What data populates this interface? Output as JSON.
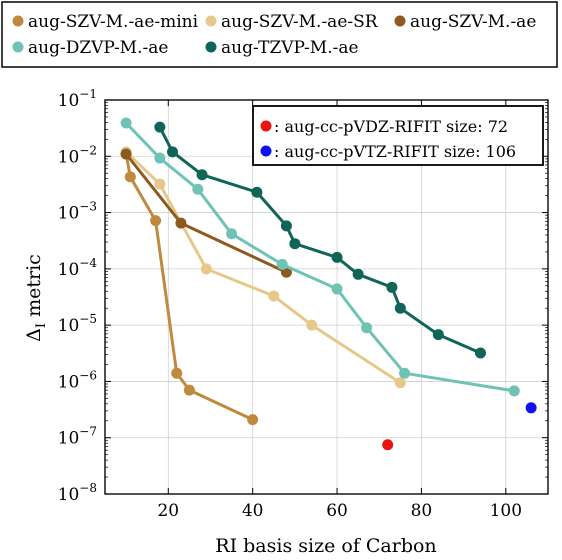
{
  "chart_data": {
    "type": "line",
    "xlabel": "RI basis size of Carbon",
    "ylabel": "Δ",
    "ylabel_sub": "I",
    "ylabel_rest": " metric",
    "yscale": "log",
    "xlim": [
      5,
      110
    ],
    "ylim": [
      1e-08,
      0.1
    ],
    "x_ticks": [
      20,
      40,
      60,
      80,
      100
    ],
    "y_ticks": [
      {
        "base": "10",
        "exp": "−1",
        "value": 0.1
      },
      {
        "base": "10",
        "exp": "−2",
        "value": 0.01
      },
      {
        "base": "10",
        "exp": "−3",
        "value": 0.001
      },
      {
        "base": "10",
        "exp": "−4",
        "value": 0.0001
      },
      {
        "base": "10",
        "exp": "−5",
        "value": 1e-05
      },
      {
        "base": "10",
        "exp": "−6",
        "value": 1e-06
      },
      {
        "base": "10",
        "exp": "−7",
        "value": 1e-07
      },
      {
        "base": "10",
        "exp": "−8",
        "value": 1e-08
      }
    ],
    "legend_position": "top (outside)",
    "inset_legend_position": "top-right",
    "series": [
      {
        "name": "aug-SZV-M.-ae-mini",
        "color": "#bf8a3e",
        "x": [
          10,
          11,
          17,
          22,
          25,
          40
        ],
        "y": [
          0.011,
          0.0043,
          0.00072,
          1.4e-06,
          7e-07,
          2.1e-07
        ]
      },
      {
        "name": "aug-SZV-M.-ae-SR",
        "color": "#e6c98a",
        "x": [
          10,
          18,
          29,
          45,
          54,
          75
        ],
        "y": [
          0.012,
          0.0032,
          0.0001,
          3.3e-05,
          1e-05,
          9.5e-07
        ]
      },
      {
        "name": "aug-SZV-M.-ae",
        "color": "#8c5a1e",
        "x": [
          10,
          23,
          48
        ],
        "y": [
          0.011,
          0.00065,
          8.7e-05
        ]
      },
      {
        "name": "aug-DZVP-M.-ae",
        "color": "#6fc2b5",
        "x": [
          10,
          18,
          27,
          35,
          47,
          60,
          67,
          76,
          102
        ],
        "y": [
          0.039,
          0.0093,
          0.0026,
          0.00042,
          0.00012,
          4.4e-05,
          9e-06,
          1.4e-06,
          6.8e-07
        ]
      },
      {
        "name": "aug-TZVP-M.-ae",
        "color": "#0f6558",
        "x": [
          18,
          21,
          28,
          41,
          48,
          50,
          60,
          65,
          73,
          75,
          84,
          94
        ],
        "y": [
          0.033,
          0.012,
          0.0047,
          0.0023,
          0.00058,
          0.00028,
          0.00016,
          8e-05,
          4.7e-05,
          2e-05,
          6.8e-06,
          3.2e-06
        ]
      }
    ],
    "reference_points": [
      {
        "label": ": aug-cc-pVDZ-RIFIT size: 72",
        "color": "#ee1111",
        "x": 72,
        "y": 7.5e-08
      },
      {
        "label": ": aug-cc-pVTZ-RIFIT size: 106",
        "color": "#1111ee",
        "x": 106,
        "y": 3.4e-07
      }
    ]
  }
}
